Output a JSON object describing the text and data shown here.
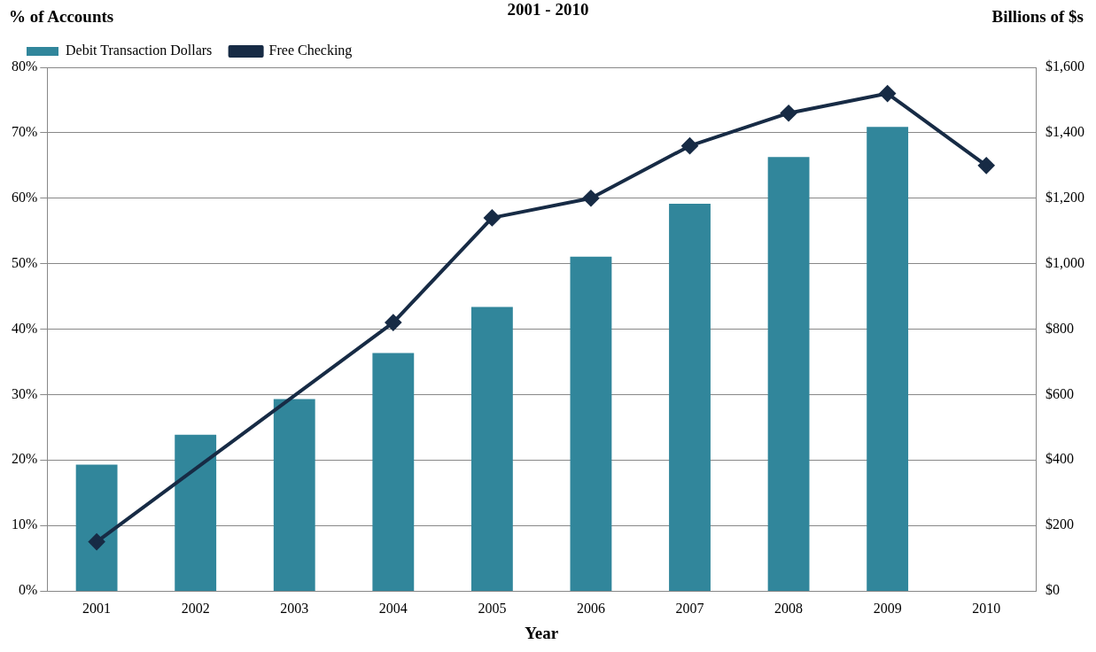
{
  "chart_data": {
    "type": "bar",
    "title": "2001 - 2010",
    "ylabel": "% of Accounts",
    "y2label": "Billions of $s",
    "xlabel": "Year",
    "categories": [
      "2001",
      "2002",
      "2003",
      "2004",
      "2005",
      "2006",
      "2007",
      "2008",
      "2009",
      "2010"
    ],
    "series": [
      {
        "name": "Debit Transaction Dollars",
        "axis": "y2",
        "color": "#31869b",
        "values": [
          386,
          477,
          586,
          727,
          868,
          1021,
          1183,
          1326,
          1418,
          null
        ]
      },
      {
        "name": "Free Checking",
        "type": "line",
        "axis": "y",
        "color": "#172b45",
        "marker": "diamond",
        "values": [
          7.5,
          null,
          null,
          41,
          57,
          60,
          68,
          73,
          76,
          65
        ]
      }
    ],
    "ylim": [
      0,
      80
    ],
    "yticks": [
      {
        "value": 0,
        "label": "0%"
      },
      {
        "value": 10,
        "label": "10%"
      },
      {
        "value": 20,
        "label": "20%"
      },
      {
        "value": 30,
        "label": "30%"
      },
      {
        "value": 40,
        "label": "40%"
      },
      {
        "value": 50,
        "label": "50%"
      },
      {
        "value": 60,
        "label": "60%"
      },
      {
        "value": 70,
        "label": "70%"
      },
      {
        "value": 80,
        "label": "80%"
      }
    ],
    "y2lim": [
      0,
      1600
    ],
    "y2ticks": [
      {
        "value": 0,
        "label": "$0"
      },
      {
        "value": 200,
        "label": "$200"
      },
      {
        "value": 400,
        "label": "$400"
      },
      {
        "value": 600,
        "label": "$600"
      },
      {
        "value": 800,
        "label": "$800"
      },
      {
        "value": 1000,
        "label": "$1,000"
      },
      {
        "value": 1200,
        "label": "$1,200"
      },
      {
        "value": 1400,
        "label": "$1,400"
      },
      {
        "value": 1600,
        "label": "$1,600"
      }
    ],
    "grid": "y",
    "legend": "top left"
  }
}
